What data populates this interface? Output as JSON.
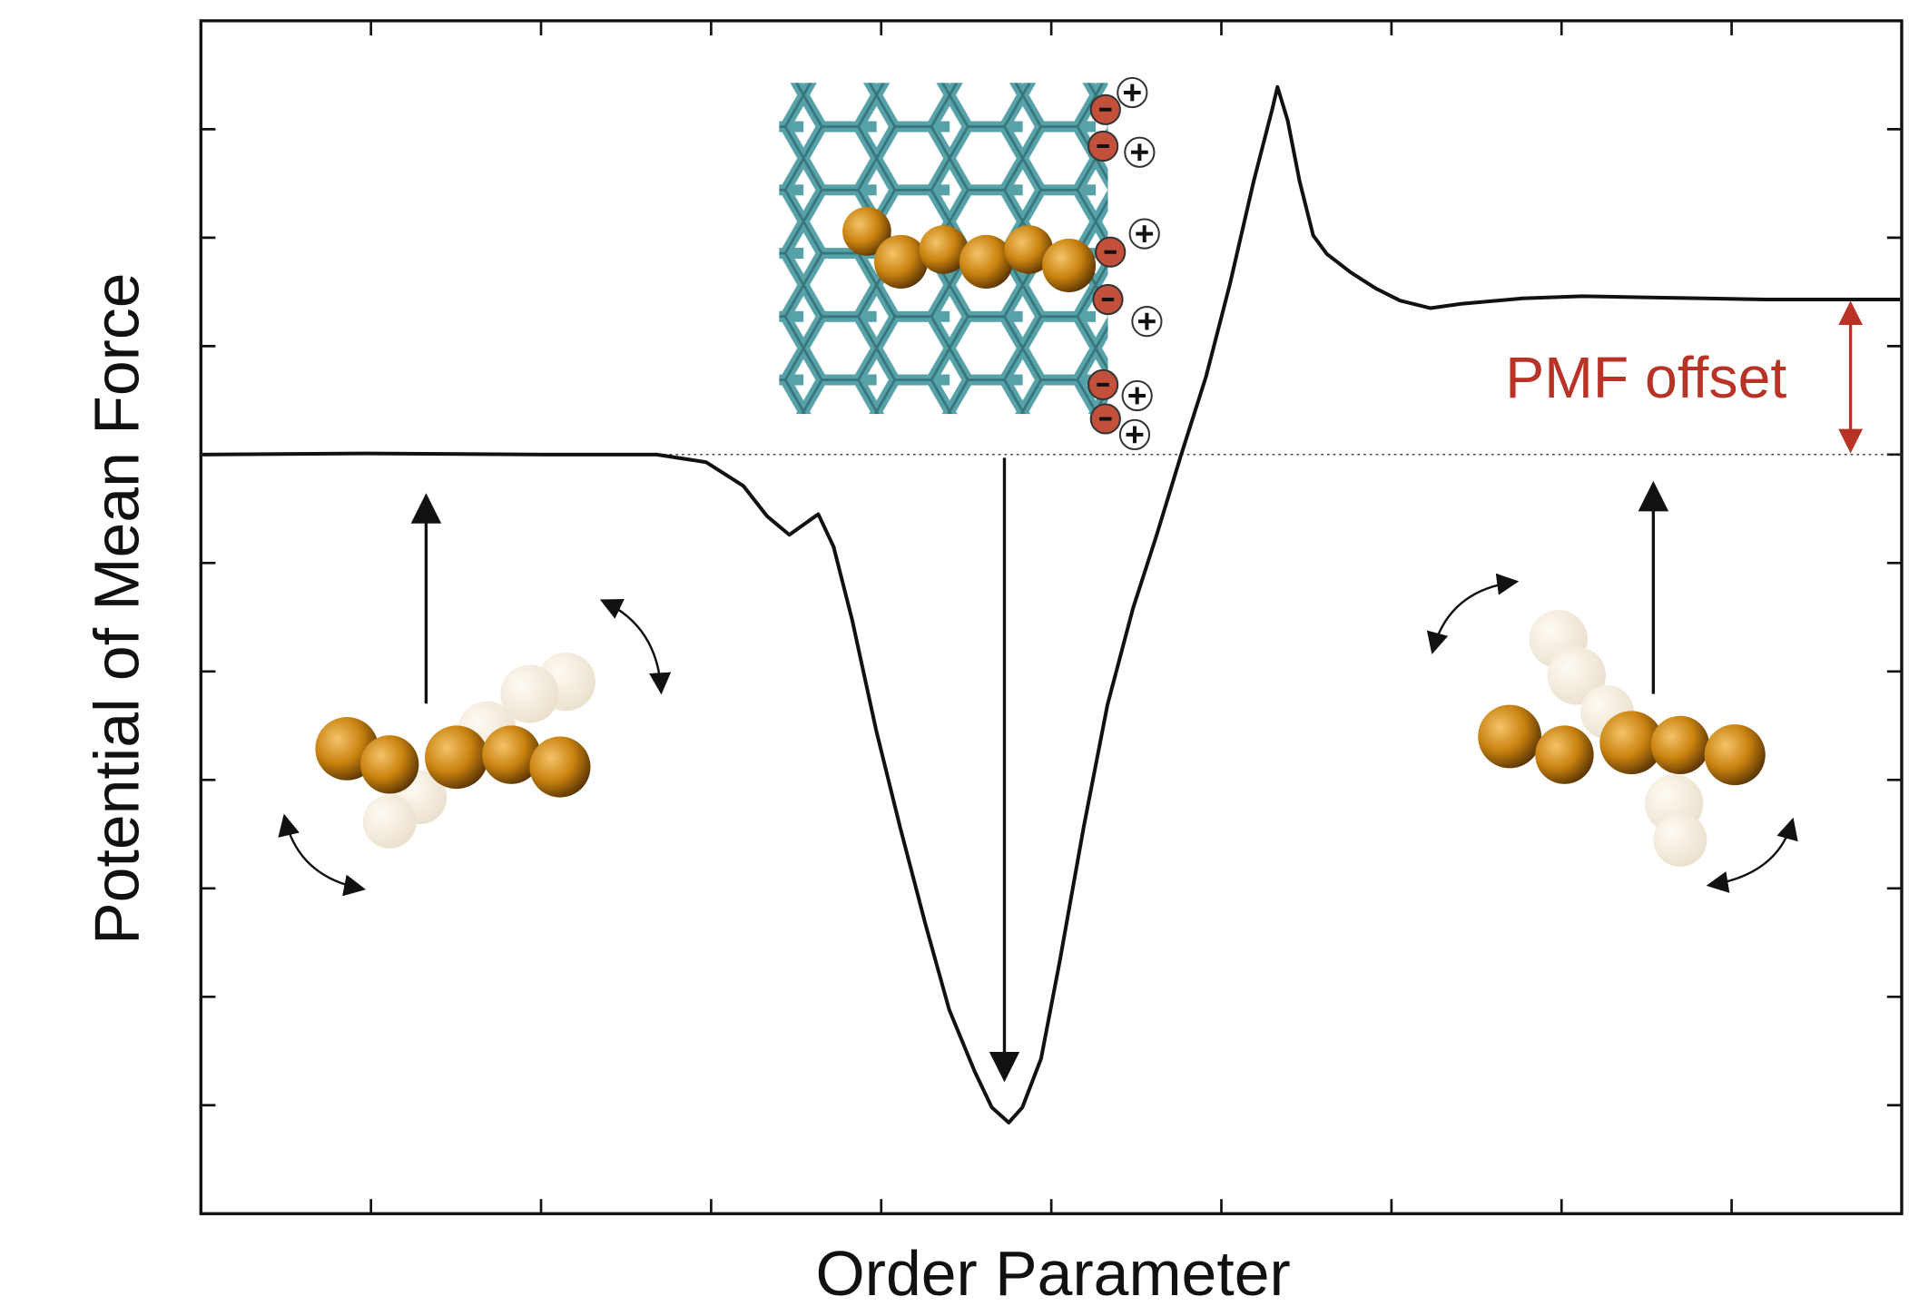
{
  "chart_data": {
    "type": "line",
    "xlabel": "Order Parameter",
    "ylabel": "Potential of Mean Force",
    "x": [
      0.01,
      0.97,
      2.04,
      2.68,
      2.97,
      3.19,
      3.33,
      3.46,
      3.54,
      3.63,
      3.72,
      3.83,
      3.97,
      4.11,
      4.26,
      4.4,
      4.55,
      4.65,
      4.75,
      4.83,
      4.94,
      5.05,
      5.19,
      5.33,
      5.48,
      5.62,
      5.76,
      5.91,
      6.05,
      6.19,
      6.3,
      6.33,
      6.39,
      6.46,
      6.54,
      6.62,
      6.76,
      6.91,
      7.05,
      7.23,
      7.41,
      7.77,
      8.12,
      8.48,
      8.84,
      9.2,
      9.56,
      9.99
    ],
    "series": [
      {
        "color": "#111111",
        "values": [
          0,
          0.01,
          0,
          0,
          -0.07,
          -0.29,
          -0.57,
          -0.74,
          -0.65,
          -0.55,
          -0.85,
          -1.53,
          -2.54,
          -3.43,
          -4.33,
          -5.12,
          -5.69,
          -6.02,
          -6.16,
          -6.02,
          -5.57,
          -4.67,
          -3.44,
          -2.31,
          -1.42,
          -0.74,
          -0.02,
          0.72,
          1.57,
          2.52,
          3.19,
          3.39,
          3.08,
          2.52,
          2.02,
          1.85,
          1.68,
          1.53,
          1.42,
          1.35,
          1.39,
          1.44,
          1.46,
          1.45,
          1.44,
          1.43,
          1.43,
          1.43
        ]
      }
    ],
    "xlim": [
      0,
      10
    ],
    "xticks": [
      1,
      2,
      3,
      4,
      5,
      6,
      7,
      8,
      9
    ],
    "ylim": [
      -7,
      4
    ],
    "yticks": [
      -6,
      -5,
      -4,
      -3,
      -2,
      -1,
      0,
      1,
      2,
      3
    ],
    "tick_labels": false,
    "reference_line": 0,
    "annotations": [
      {
        "text": "PMF offset",
        "color": "#b83226"
      }
    ]
  }
}
